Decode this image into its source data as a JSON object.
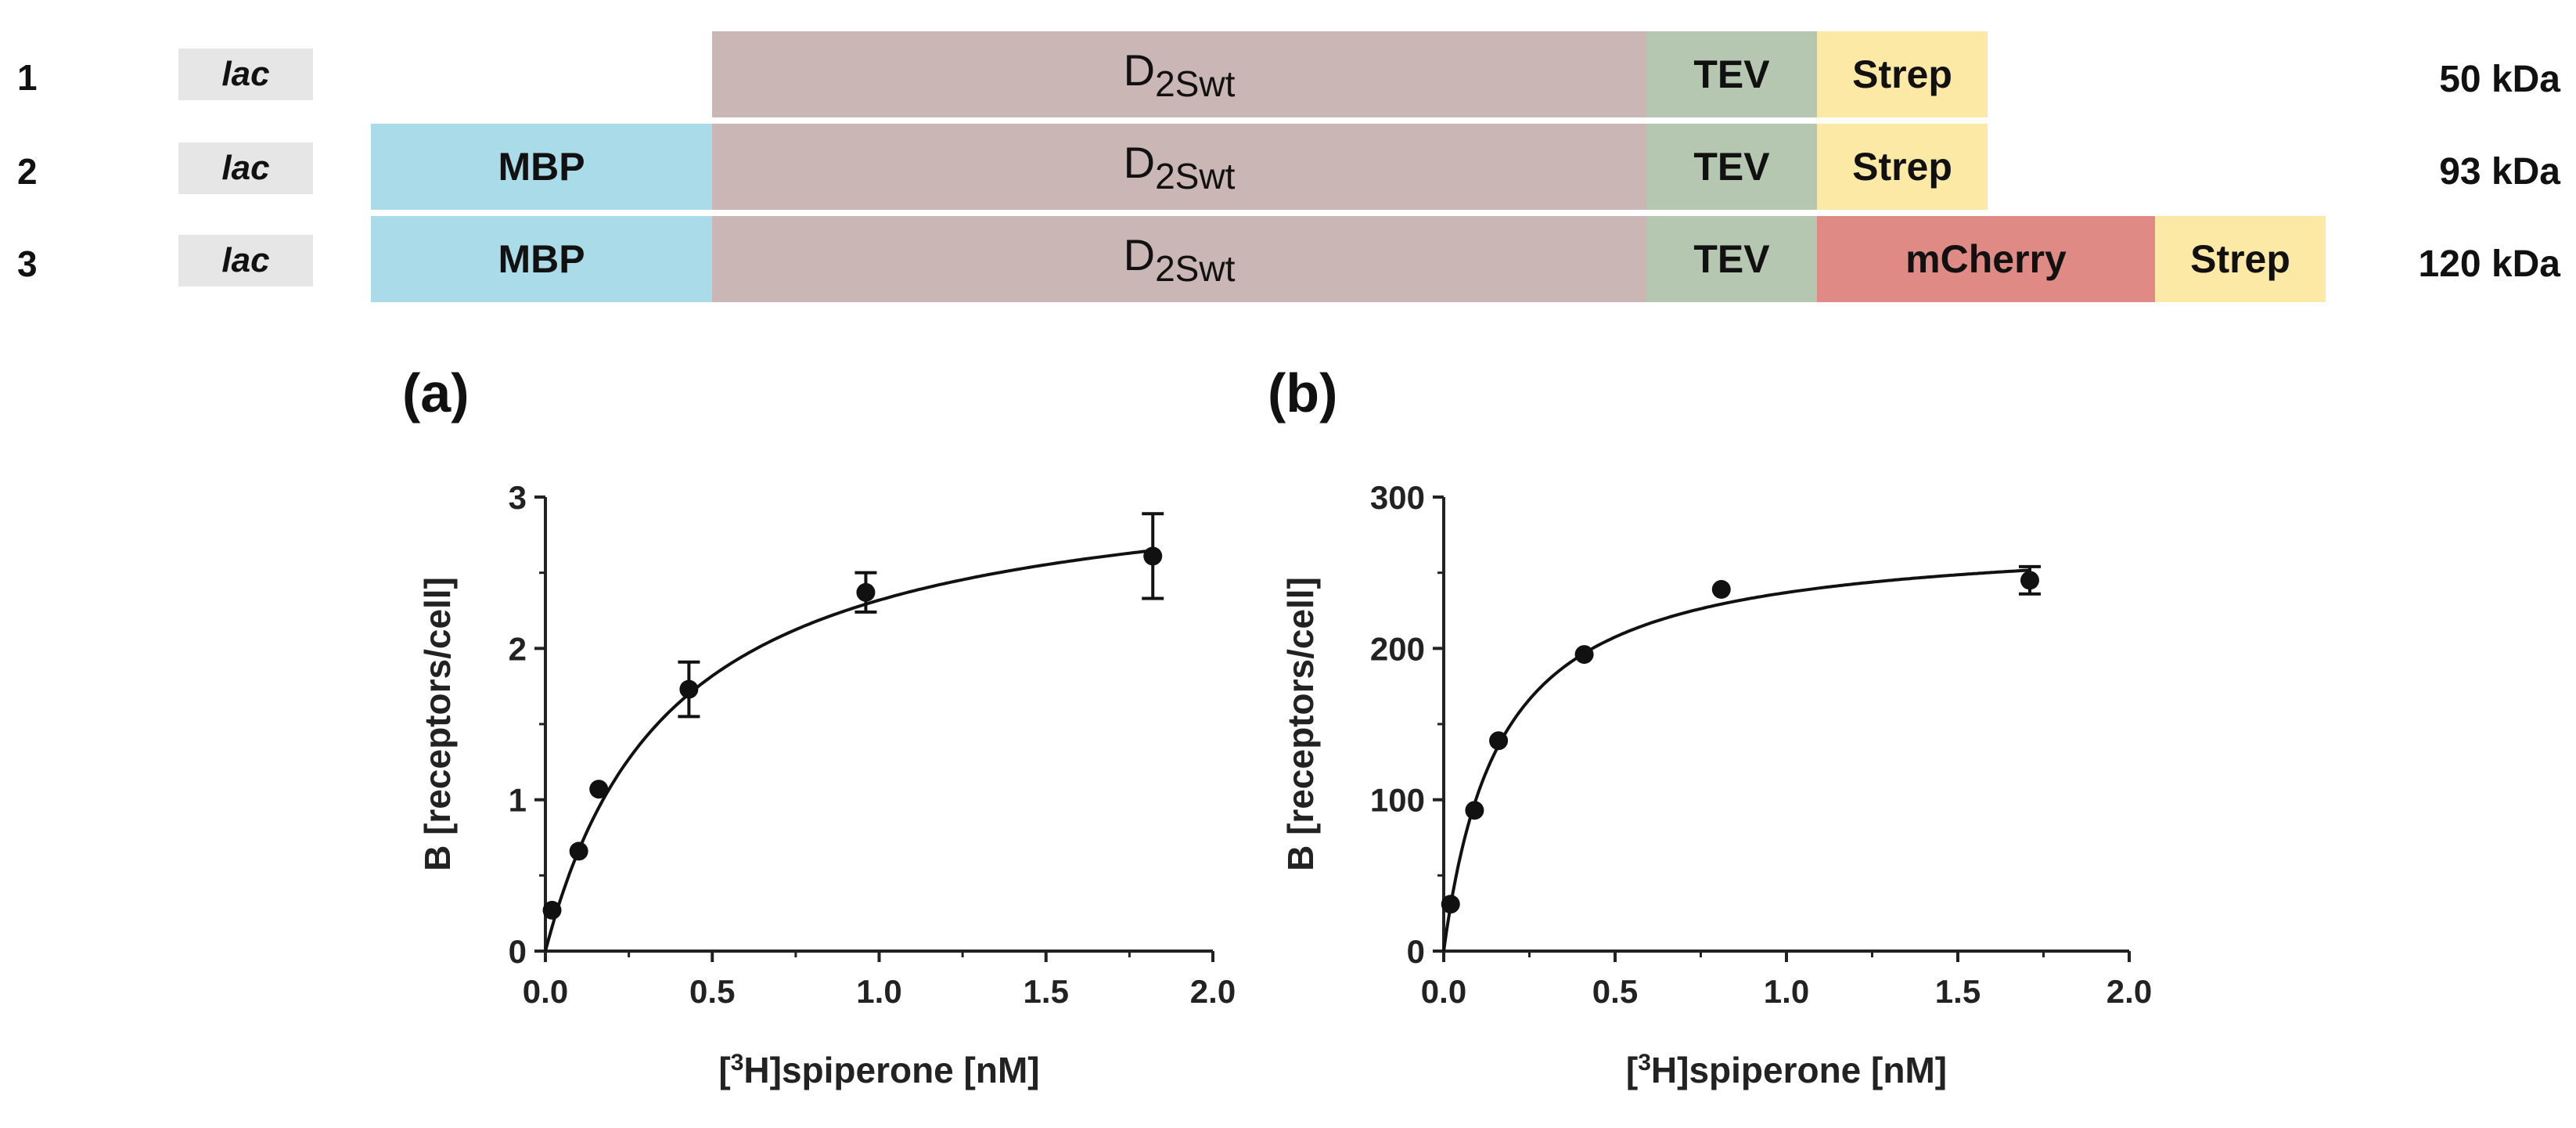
{
  "constructs": [
    {
      "row": "1",
      "promoter": "lac",
      "mass": "50 kDa",
      "segments": [
        {
          "kind": "d2",
          "main": "D",
          "sub": "2Swt",
          "color": "#c9b6b5"
        },
        {
          "kind": "tev",
          "label": "TEV",
          "color": "#b5c7b1"
        },
        {
          "kind": "strep",
          "label": "Strep",
          "color": "#fde9a6"
        }
      ]
    },
    {
      "row": "2",
      "promoter": "lac",
      "mass": "93 kDa",
      "segments": [
        {
          "kind": "mbp",
          "label": "MBP",
          "color": "#aadbe8"
        },
        {
          "kind": "d2",
          "main": "D",
          "sub": "2Swt",
          "color": "#c9b6b5"
        },
        {
          "kind": "tev",
          "label": "TEV",
          "color": "#b5c7b1"
        },
        {
          "kind": "strep",
          "label": "Strep",
          "color": "#fde9a6"
        }
      ]
    },
    {
      "row": "3",
      "promoter": "lac",
      "mass": "120 kDa",
      "segments": [
        {
          "kind": "mbp",
          "label": "MBP",
          "color": "#aadbe8"
        },
        {
          "kind": "d2",
          "main": "D",
          "sub": "2Swt",
          "color": "#c9b6b5"
        },
        {
          "kind": "tev",
          "label": "TEV",
          "color": "#b5c7b1"
        },
        {
          "kind": "mcherry",
          "label": "mCherry",
          "color": "#df8a85"
        },
        {
          "kind": "strep",
          "label": "Strep",
          "color": "#fde9a6"
        }
      ]
    }
  ],
  "chart_data": [
    {
      "panel": "(a)",
      "type": "scatter",
      "xlabel": {
        "pre": "[",
        "sup": "3",
        "post": "H]spiperone [nM]"
      },
      "ylabel": "B [receptors/cell]",
      "xlim": [
        0,
        2.0
      ],
      "ylim": [
        0,
        3
      ],
      "xticks": [
        "0.0",
        "0.5",
        "1.0",
        "1.5",
        "2.0"
      ],
      "yticks": [
        "0",
        "1",
        "2",
        "3"
      ],
      "points": [
        {
          "x": 0.02,
          "y": 0.27,
          "err": 0
        },
        {
          "x": 0.1,
          "y": 0.66,
          "err": 0
        },
        {
          "x": 0.16,
          "y": 1.07,
          "err": 0
        },
        {
          "x": 0.43,
          "y": 1.73,
          "err": 0.18
        },
        {
          "x": 0.96,
          "y": 2.37,
          "err": 0.13
        },
        {
          "x": 1.82,
          "y": 2.61,
          "err": 0.28
        }
      ],
      "fit": {
        "model": "one-site saturation binding",
        "Bmax": 3.2,
        "Kd": 0.38
      }
    },
    {
      "panel": "(b)",
      "type": "scatter",
      "xlabel": {
        "pre": "[",
        "sup": "3",
        "post": "H]spiperone [nM]"
      },
      "ylabel": "B [receptors/cell]",
      "xlim": [
        0,
        2.0
      ],
      "ylim": [
        0,
        300
      ],
      "xticks": [
        "0.0",
        "0.5",
        "1.0",
        "1.5",
        "2.0"
      ],
      "yticks": [
        "0",
        "100",
        "200",
        "300"
      ],
      "points": [
        {
          "x": 0.02,
          "y": 31,
          "err": 0
        },
        {
          "x": 0.09,
          "y": 93,
          "err": 0
        },
        {
          "x": 0.16,
          "y": 139,
          "err": 0
        },
        {
          "x": 0.41,
          "y": 196,
          "err": 0
        },
        {
          "x": 0.81,
          "y": 239,
          "err": 0
        },
        {
          "x": 1.71,
          "y": 245,
          "err": 9
        }
      ],
      "fit": {
        "model": "one-site saturation binding",
        "Bmax": 276,
        "Kd": 0.165
      }
    }
  ]
}
